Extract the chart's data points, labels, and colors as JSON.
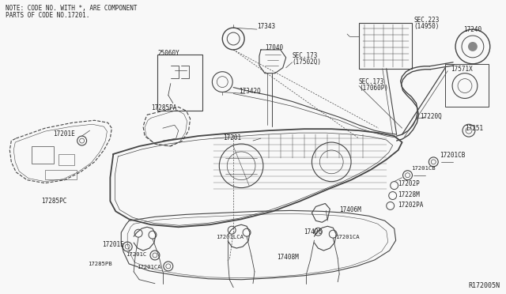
{
  "bg_color": "#f8f8f8",
  "line_color": "#444444",
  "text_color": "#222222",
  "fig_width": 6.4,
  "fig_height": 3.72,
  "dpi": 100,
  "note_line1": "NOTE: CODE NO. WITH *, ARE COMPONENT",
  "note_line2": "PARTS OF CODE NO.17201.",
  "diagram_ref": "R172005N"
}
